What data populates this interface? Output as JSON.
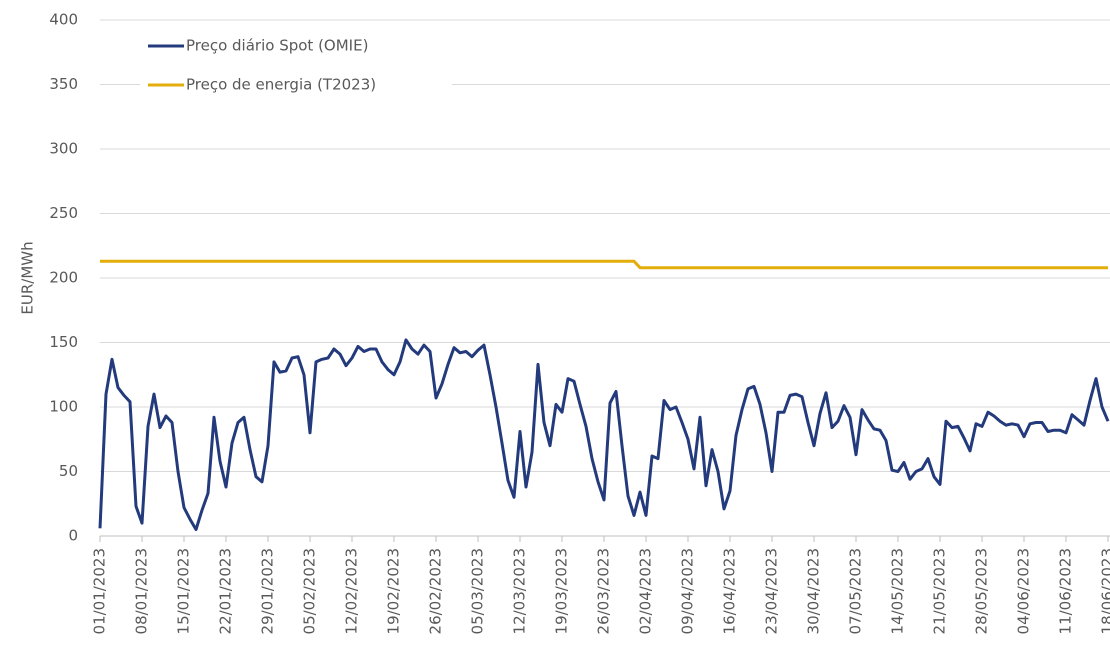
{
  "chart_data": {
    "type": "line",
    "y_label": "EUR/MWh",
    "x": [
      "01/01/2023",
      "02/01/2023",
      "03/01/2023",
      "04/01/2023",
      "05/01/2023",
      "06/01/2023",
      "07/01/2023",
      "08/01/2023",
      "09/01/2023",
      "10/01/2023",
      "11/01/2023",
      "12/01/2023",
      "13/01/2023",
      "14/01/2023",
      "15/01/2023",
      "16/01/2023",
      "17/01/2023",
      "18/01/2023",
      "19/01/2023",
      "20/01/2023",
      "21/01/2023",
      "22/01/2023",
      "23/01/2023",
      "24/01/2023",
      "25/01/2023",
      "26/01/2023",
      "27/01/2023",
      "28/01/2023",
      "29/01/2023",
      "30/01/2023",
      "31/01/2023",
      "01/02/2023",
      "02/02/2023",
      "03/02/2023",
      "04/02/2023",
      "05/02/2023",
      "06/02/2023",
      "07/02/2023",
      "08/02/2023",
      "09/02/2023",
      "10/02/2023",
      "11/02/2023",
      "12/02/2023",
      "13/02/2023",
      "14/02/2023",
      "15/02/2023",
      "16/02/2023",
      "17/02/2023",
      "18/02/2023",
      "19/02/2023",
      "20/02/2023",
      "21/02/2023",
      "22/02/2023",
      "23/02/2023",
      "24/02/2023",
      "25/02/2023",
      "26/02/2023",
      "27/02/2023",
      "28/02/2023",
      "01/03/2023",
      "02/03/2023",
      "03/03/2023",
      "04/03/2023",
      "05/03/2023",
      "06/03/2023",
      "07/03/2023",
      "08/03/2023",
      "09/03/2023",
      "10/03/2023",
      "11/03/2023",
      "12/03/2023",
      "13/03/2023",
      "14/03/2023",
      "15/03/2023",
      "16/03/2023",
      "17/03/2023",
      "18/03/2023",
      "19/03/2023",
      "20/03/2023",
      "21/03/2023",
      "22/03/2023",
      "23/03/2023",
      "24/03/2023",
      "25/03/2023",
      "26/03/2023",
      "27/03/2023",
      "28/03/2023",
      "29/03/2023",
      "30/03/2023",
      "31/03/2023",
      "01/04/2023",
      "02/04/2023",
      "03/04/2023",
      "04/04/2023",
      "05/04/2023",
      "06/04/2023",
      "07/04/2023",
      "08/04/2023",
      "09/04/2023",
      "10/04/2023",
      "11/04/2023",
      "12/04/2023",
      "13/04/2023",
      "14/04/2023",
      "15/04/2023",
      "16/04/2023",
      "17/04/2023",
      "18/04/2023",
      "19/04/2023",
      "20/04/2023",
      "21/04/2023",
      "22/04/2023",
      "23/04/2023",
      "24/04/2023",
      "25/04/2023",
      "26/04/2023",
      "27/04/2023",
      "28/04/2023",
      "29/04/2023",
      "30/04/2023",
      "01/05/2023",
      "02/05/2023",
      "03/05/2023",
      "04/05/2023",
      "05/05/2023",
      "06/05/2023",
      "07/05/2023",
      "08/05/2023",
      "09/05/2023",
      "10/05/2023",
      "11/05/2023",
      "12/05/2023",
      "13/05/2023",
      "14/05/2023",
      "15/05/2023",
      "16/05/2023",
      "17/05/2023",
      "18/05/2023",
      "19/05/2023",
      "20/05/2023",
      "21/05/2023",
      "22/05/2023",
      "23/05/2023",
      "24/05/2023",
      "25/05/2023",
      "26/05/2023",
      "27/05/2023",
      "28/05/2023",
      "29/05/2023",
      "30/05/2023",
      "31/05/2023",
      "01/06/2023",
      "02/06/2023",
      "03/06/2023",
      "04/06/2023",
      "05/06/2023",
      "06/06/2023",
      "07/06/2023",
      "08/06/2023",
      "09/06/2023",
      "10/06/2023",
      "11/06/2023",
      "12/06/2023",
      "13/06/2023",
      "14/06/2023",
      "15/06/2023",
      "16/06/2023",
      "17/06/2023",
      "18/06/2023"
    ],
    "series": [
      {
        "name": "Preço diário Spot (OMIE)",
        "color": "#233a7c",
        "values": [
          6,
          110,
          137,
          115,
          109,
          104,
          23,
          10,
          85,
          110,
          84,
          93,
          88,
          50,
          22,
          13,
          5,
          20,
          33,
          92,
          58,
          38,
          72,
          88,
          92,
          67,
          46,
          42,
          70,
          135,
          127,
          128,
          138,
          139,
          125,
          80,
          135,
          137,
          138,
          145,
          141,
          132,
          138,
          147,
          143,
          145,
          145,
          135,
          129,
          125,
          135,
          152,
          145,
          141,
          148,
          143,
          107,
          118,
          133,
          146,
          142,
          143,
          139,
          144,
          148,
          125,
          100,
          72,
          43,
          30,
          81,
          38,
          65,
          133,
          88,
          70,
          102,
          96,
          122,
          120,
          102,
          85,
          60,
          42,
          28,
          103,
          112,
          70,
          31,
          16,
          34,
          16,
          62,
          60,
          105,
          98,
          100,
          88,
          75,
          52,
          92,
          39,
          67,
          50,
          21,
          35,
          78,
          98,
          114,
          116,
          102,
          80,
          50,
          96,
          96,
          109,
          110,
          108,
          88,
          70,
          95,
          111,
          84,
          89,
          101,
          92,
          63,
          98,
          90,
          83,
          82,
          74,
          51,
          50,
          57,
          44,
          50,
          52,
          60,
          46,
          40,
          89,
          84,
          85,
          76,
          66,
          87,
          85,
          96,
          93,
          89,
          86,
          87,
          86,
          77,
          87,
          88,
          88,
          81,
          82,
          82,
          80,
          94,
          90,
          86,
          105,
          122,
          100,
          89
        ]
      },
      {
        "name": "Preço de energia (T2023)",
        "color": "#e3ae0c",
        "values": [
          213,
          213,
          213,
          213,
          213,
          213,
          213,
          213,
          213,
          213,
          213,
          213,
          213,
          213,
          213,
          213,
          213,
          213,
          213,
          213,
          213,
          213,
          213,
          213,
          213,
          213,
          213,
          213,
          213,
          213,
          213,
          213,
          213,
          213,
          213,
          213,
          213,
          213,
          213,
          213,
          213,
          213,
          213,
          213,
          213,
          213,
          213,
          213,
          213,
          213,
          213,
          213,
          213,
          213,
          213,
          213,
          213,
          213,
          213,
          213,
          213,
          213,
          213,
          213,
          213,
          213,
          213,
          213,
          213,
          213,
          213,
          213,
          213,
          213,
          213,
          213,
          213,
          213,
          213,
          213,
          213,
          213,
          213,
          213,
          213,
          213,
          213,
          213,
          213,
          213,
          208,
          208,
          208,
          208,
          208,
          208,
          208,
          208,
          208,
          208,
          208,
          208,
          208,
          208,
          208,
          208,
          208,
          208,
          208,
          208,
          208,
          208,
          208,
          208,
          208,
          208,
          208,
          208,
          208,
          208,
          208,
          208,
          208,
          208,
          208,
          208,
          208,
          208,
          208,
          208,
          208,
          208,
          208,
          208,
          208,
          208,
          208,
          208,
          208,
          208,
          208,
          208,
          208,
          208,
          208,
          208,
          208,
          208,
          208,
          208,
          208,
          208,
          208,
          208,
          208,
          208,
          208,
          208,
          208,
          208,
          208,
          208,
          208,
          208,
          208,
          208,
          208,
          208,
          208
        ]
      }
    ],
    "xlim": [
      "01/01/2023",
      "18/06/2023"
    ],
    "xticks": [
      "01/01/2023",
      "08/01/2023",
      "15/01/2023",
      "22/01/2023",
      "29/01/2023",
      "05/02/2023",
      "12/02/2023",
      "19/02/2023",
      "26/02/2023",
      "05/03/2023",
      "12/03/2023",
      "19/03/2023",
      "26/03/2023",
      "02/04/2023",
      "09/04/2023",
      "16/04/2023",
      "23/04/2023",
      "30/04/2023",
      "07/05/2023",
      "14/05/2023",
      "21/05/2023",
      "28/05/2023",
      "04/06/2023",
      "11/06/2023",
      "18/06/2023"
    ],
    "ylim": [
      0,
      400
    ],
    "yticks": [
      0,
      50,
      100,
      150,
      200,
      250,
      300,
      350,
      400
    ],
    "grid": true,
    "legend": "top-left"
  }
}
